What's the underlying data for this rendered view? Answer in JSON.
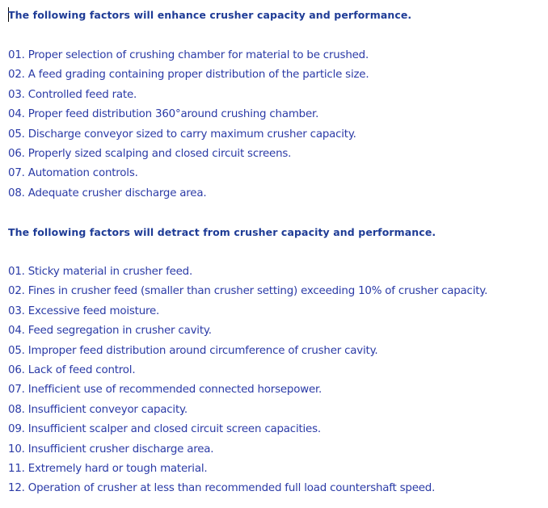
{
  "enhance": {
    "heading": "The following factors will enhance crusher capacity and performance.",
    "items": [
      "01. Proper selection of crushing chamber for material to be crushed.",
      "02. A feed grading containing proper distribution of the particle size.",
      "03. Controlled feed rate.",
      "04. Proper feed distribution 360°around crushing chamber.",
      "05. Discharge conveyor sized to carry maximum crusher capacity.",
      "06. Properly sized scalping and closed circuit screens.",
      "07. Automation controls.",
      "08. Adequate crusher discharge area."
    ]
  },
  "detract": {
    "heading": "The following factors will detract from crusher capacity and performance.",
    "items": [
      "01. Sticky material in crusher feed.",
      "02. Fines in crusher feed (smaller than crusher setting) exceeding 10% of crusher capacity.",
      "03. Excessive feed moisture.",
      "04. Feed segregation in crusher cavity.",
      "05. Improper feed distribution around circumference of crusher cavity.",
      "06. Lack of feed control.",
      "07. Inefficient use of recommended connected horsepower.",
      "08. Insufficient conveyor capacity.",
      "09. Insufficient scalper and closed circuit screen capacities.",
      "10. Insufficient crusher discharge area.",
      "11. Extremely hard or tough material.",
      "12. Operation of crusher at less than recommended full load countershaft speed."
    ]
  }
}
